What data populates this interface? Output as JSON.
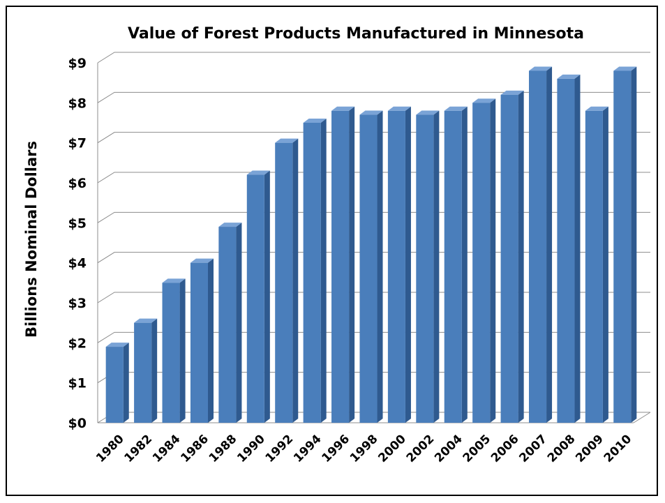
{
  "chart_data": {
    "type": "bar",
    "title": "Value of Forest Products Manufactured in Minnesota",
    "ylabel": "Billions Nominal Dollars",
    "xlabel": "",
    "categories": [
      "1980",
      "1982",
      "1984",
      "1986",
      "1988",
      "1990",
      "1992",
      "1994",
      "1996",
      "1998",
      "2000",
      "2002",
      "2004",
      "2005",
      "2006",
      "2007",
      "2008",
      "2009",
      "2010"
    ],
    "values": [
      1.9,
      2.5,
      3.5,
      4.0,
      4.9,
      6.2,
      7.0,
      7.5,
      7.8,
      7.7,
      7.8,
      7.7,
      7.8,
      8.0,
      8.2,
      8.8,
      8.6,
      7.8,
      8.8
    ],
    "ylim": [
      0,
      9
    ],
    "yticks": [
      "$0",
      "$1",
      "$2",
      "$3",
      "$4",
      "$5",
      "$6",
      "$7",
      "$8",
      "$9"
    ],
    "grid": true,
    "legend": "none",
    "colors": {
      "bar_front": "#4a7ebb",
      "bar_side": "#2f5a8f",
      "bar_top": "#7aa3d6"
    }
  }
}
